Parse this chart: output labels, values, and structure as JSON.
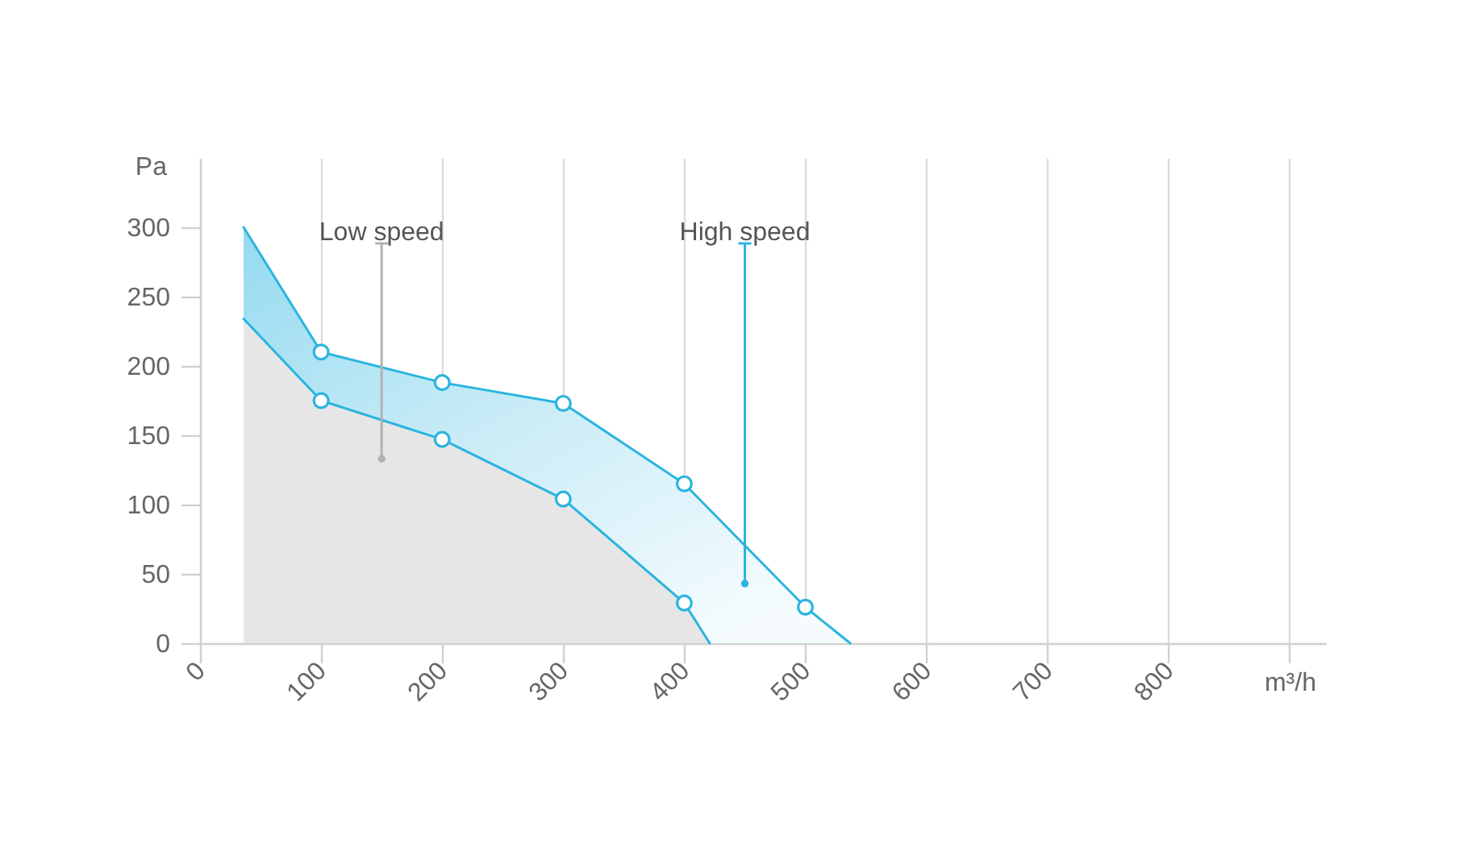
{
  "chart_data": {
    "type": "area",
    "xlabel": "m³/h",
    "ylabel": "Pa",
    "series": [
      {
        "color": "#2ab4e0",
        "x": [
          36,
          100,
          200,
          300,
          400,
          500,
          537
        ],
        "values": [
          300,
          210,
          188,
          173,
          115,
          26,
          0
        ]
      },
      {
        "color": "#e6e6e6",
        "x": [
          36,
          100,
          200,
          300,
          400,
          421
        ],
        "values": [
          234,
          175,
          147,
          104,
          29,
          0
        ]
      }
    ],
    "xlim": [
      0,
      930
    ],
    "ylim": [
      0,
      350
    ],
    "xticks": [
      0,
      100,
      200,
      300,
      400,
      500,
      600,
      700,
      800,
      {
        "value": 900,
        "label": null
      }
    ],
    "yticks": [
      0,
      50,
      100,
      150,
      200,
      250,
      300
    ],
    "grid": "x",
    "marker": "circle",
    "annotations": [
      {
        "text": "Low speed",
        "x": 150,
        "y": 133
      },
      {
        "text": "High speed",
        "x": 450,
        "y": 43
      }
    ]
  }
}
